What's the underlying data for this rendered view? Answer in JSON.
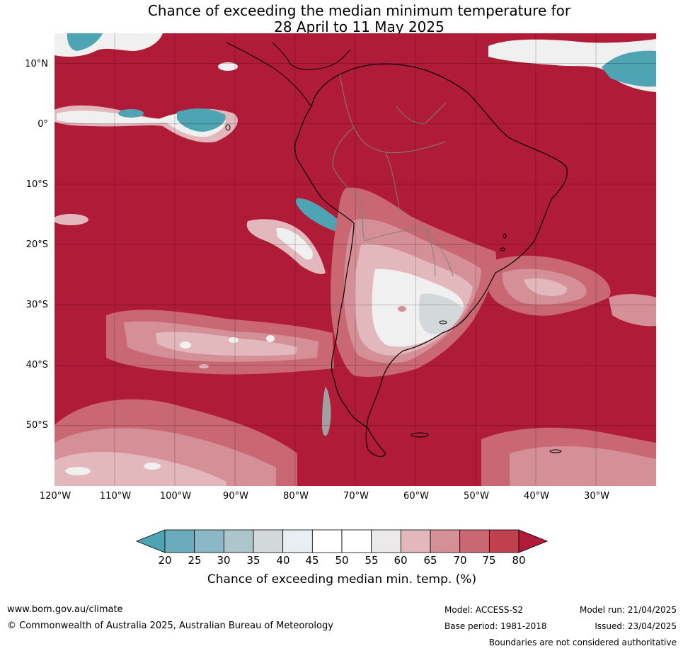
{
  "title": {
    "line1": "Chance of exceeding the median minimum temperature for",
    "line2": "28 April to 11 May 2025"
  },
  "map": {
    "region": "South America",
    "projection": "equirectangular",
    "lon_range": [
      -120,
      -20
    ],
    "lat_range": [
      -60,
      15
    ],
    "dominant_fill_color": "#b01b37",
    "lat_labels": [
      "10°N",
      "0°",
      "10°S",
      "20°S",
      "30°S",
      "40°S",
      "50°S"
    ],
    "lon_labels": [
      "120°W",
      "110°W",
      "100°W",
      "90°W",
      "80°W",
      "70°W",
      "60°W",
      "50°W",
      "40°W",
      "30°W"
    ],
    "colors": {
      "ocean_high": "#b01b37",
      "band_75_80": "#c0404f",
      "band_70_75": "#c96773",
      "band_65_70": "#d58f97",
      "band_60_65": "#e3b8bd",
      "band_neutral": "#f0f0f0",
      "band_low": "#4fa4b3",
      "coast": "#000000",
      "borders": "#808080"
    }
  },
  "colorbar": {
    "ticks": [
      "20",
      "25",
      "30",
      "35",
      "40",
      "45",
      "50",
      "55",
      "60",
      "65",
      "70",
      "75",
      "80"
    ],
    "colors": [
      "#4fa4b3",
      "#6aacbb",
      "#8ab8c6",
      "#adc6cc",
      "#d3d8da",
      "#e8eef1",
      "#ffffff",
      "#ffffff",
      "#ebe9ea",
      "#e3b8bd",
      "#d58f97",
      "#c96773",
      "#c0404f",
      "#b01b37"
    ],
    "label": "Chance of exceeding median min. temp. (%)"
  },
  "footer": {
    "url": "www.bom.gov.au/climate",
    "copyright": "© Commonwealth of Australia 2025, Australian Bureau of Meteorology",
    "model": "Model: ACCESS-S2",
    "base_period": "Base period: 1981-2018",
    "model_run": "Model run: 21/04/2025",
    "issued": "Issued: 23/04/2025",
    "disclaimer": "Boundaries are not considered authoritative"
  }
}
